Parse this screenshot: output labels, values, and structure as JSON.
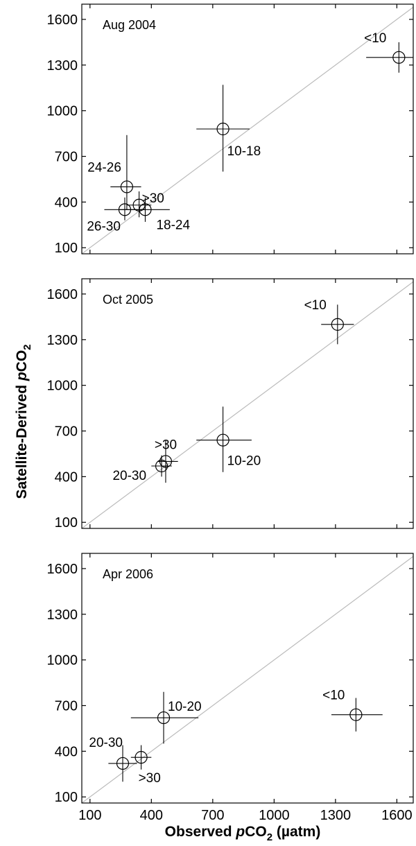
{
  "figure": {
    "ylabel": {
      "prefix": "Satellite-Derived ",
      "italic": "p",
      "main": "CO",
      "sub": "2"
    },
    "xlabel": {
      "prefix": "Observed ",
      "italic": "p",
      "main": "CO",
      "sub": "2",
      "suffix": " (µatm)"
    },
    "colors": {
      "axis": "#000000",
      "marker": "#000000",
      "reference_line": "#bbbbbb",
      "background": "#ffffff"
    }
  },
  "chart_data": [
    {
      "type": "scatter",
      "title": "Aug 2004",
      "xlim": [
        60,
        1680
      ],
      "ylim": [
        60,
        1700
      ],
      "xticks": [
        100,
        400,
        700,
        1000,
        1300,
        1600
      ],
      "yticks": [
        100,
        400,
        700,
        1000,
        1300,
        1600
      ],
      "x_ticklabels_shown": false,
      "reference_line": "1:1",
      "grid": false,
      "points": [
        {
          "label": "<10",
          "x": 1610,
          "y": 1350,
          "xerr": [
            1450,
            1770
          ],
          "yerr": [
            1250,
            1450
          ]
        },
        {
          "label": "10-18",
          "x": 750,
          "y": 880,
          "xerr": [
            620,
            880
          ],
          "yerr": [
            600,
            1170
          ]
        },
        {
          "label": "24-26",
          "x": 280,
          "y": 500,
          "xerr": [
            200,
            350
          ],
          "yerr": [
            350,
            840
          ]
        },
        {
          "label": ">30",
          "x": 340,
          "y": 380,
          "xerr": [
            280,
            400
          ],
          "yerr": [
            300,
            470
          ]
        },
        {
          "label": "26-30",
          "x": 270,
          "y": 350,
          "xerr": [
            170,
            370
          ],
          "yerr": [
            280,
            430
          ]
        },
        {
          "label": "18-24",
          "x": 370,
          "y": 350,
          "xerr": [
            240,
            490
          ],
          "yerr": [
            270,
            430
          ]
        }
      ]
    },
    {
      "type": "scatter",
      "title": "Oct 2005",
      "xlim": [
        60,
        1680
      ],
      "ylim": [
        60,
        1700
      ],
      "xticks": [
        100,
        400,
        700,
        1000,
        1300,
        1600
      ],
      "yticks": [
        100,
        400,
        700,
        1000,
        1300,
        1600
      ],
      "x_ticklabels_shown": false,
      "reference_line": "1:1",
      "grid": false,
      "points": [
        {
          "label": "<10",
          "x": 1310,
          "y": 1400,
          "xerr": [
            1230,
            1390
          ],
          "yerr": [
            1270,
            1530
          ]
        },
        {
          "label": "10-20",
          "x": 750,
          "y": 640,
          "xerr": [
            620,
            890
          ],
          "yerr": [
            430,
            860
          ]
        },
        {
          "label": ">30",
          "x": 470,
          "y": 500,
          "xerr": [
            430,
            530
          ],
          "yerr": [
            360,
            640
          ]
        },
        {
          "label": "20-30",
          "x": 450,
          "y": 470,
          "xerr": [
            400,
            500
          ],
          "yerr": [
            400,
            540
          ]
        }
      ]
    },
    {
      "type": "scatter",
      "title": "Apr 2006",
      "xlim": [
        60,
        1680
      ],
      "ylim": [
        60,
        1700
      ],
      "xticks": [
        100,
        400,
        700,
        1000,
        1300,
        1600
      ],
      "yticks": [
        100,
        400,
        700,
        1000,
        1300,
        1600
      ],
      "x_ticklabels_shown": true,
      "reference_line": "1:1",
      "grid": false,
      "points": [
        {
          "label": "<10",
          "x": 1400,
          "y": 640,
          "xerr": [
            1280,
            1530
          ],
          "yerr": [
            530,
            750
          ]
        },
        {
          "label": "10-20",
          "x": 460,
          "y": 620,
          "xerr": [
            300,
            630
          ],
          "yerr": [
            450,
            790
          ]
        },
        {
          "label": "20-30",
          "x": 260,
          "y": 320,
          "xerr": [
            190,
            330
          ],
          "yerr": [
            200,
            440
          ]
        },
        {
          "label": ">30",
          "x": 350,
          "y": 360,
          "xerr": [
            300,
            400
          ],
          "yerr": [
            280,
            440
          ]
        }
      ]
    }
  ]
}
